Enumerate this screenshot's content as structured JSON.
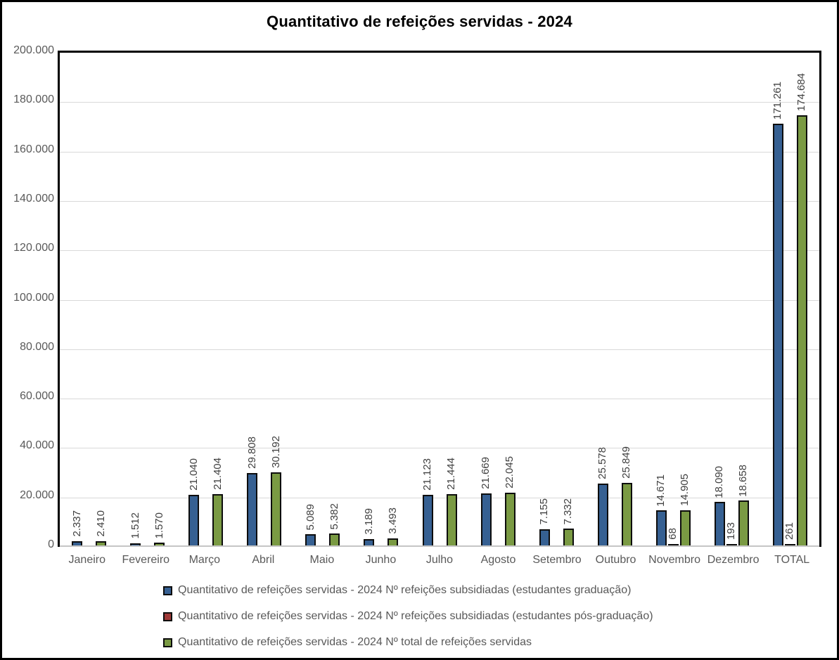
{
  "chart_data": {
    "type": "bar",
    "title": "Quantitativo de refeições servidas - 2024",
    "categories": [
      "Janeiro",
      "Fevereiro",
      "Março",
      "Abril",
      "Maio",
      "Junho",
      "Julho",
      "Agosto",
      "Setembro",
      "Outubro",
      "Novembro",
      "Dezembro",
      "TOTAL"
    ],
    "series": [
      {
        "key": "graduacao",
        "name": "Quantitativo de refeições servidas - 2024 Nº refeições subsidiadas (estudantes graduação)",
        "color": "#366092",
        "values": [
          2337,
          1512,
          21040,
          29808,
          5089,
          3189,
          21123,
          21669,
          7155,
          25578,
          14671,
          18090,
          171261
        ]
      },
      {
        "key": "pos-graduacao",
        "name": "Quantitativo de refeições servidas - 2024 Nº refeições subsidiadas (estudantes pós-graduação)",
        "color": "#A03A38",
        "values": [
          null,
          null,
          null,
          null,
          null,
          null,
          null,
          null,
          null,
          null,
          68,
          193,
          261
        ]
      },
      {
        "key": "total",
        "name": "Quantitativo de refeições servidas - 2024 Nº total de refeições servidas",
        "color": "#7A9A43",
        "values": [
          2410,
          1570,
          21404,
          30192,
          5382,
          3493,
          21444,
          22045,
          7332,
          25849,
          14905,
          18658,
          174684
        ]
      }
    ],
    "ylim": [
      0,
      200000
    ],
    "ytick_step": 20000,
    "ytick_labels": [
      "200.000",
      "180.000",
      "160.000",
      "140.000",
      "120.000",
      "100.000",
      "80.000",
      "60.000",
      "40.000",
      "20.000",
      "0"
    ],
    "grid": true,
    "data_labels_rotated_vertical": true,
    "number_format": "thousands-dot",
    "legend_position": "bottom-left"
  },
  "style": {
    "background": "#FFFFFF",
    "frame_border": "#000000",
    "plot_border": "#000000",
    "gridline": "#D9D9D9",
    "axis_line": "#C6C6C6",
    "axis_text": "#595959",
    "data_label_text": "#404040",
    "bar_outline": "#0D0D0D",
    "title_text": "#000000"
  }
}
